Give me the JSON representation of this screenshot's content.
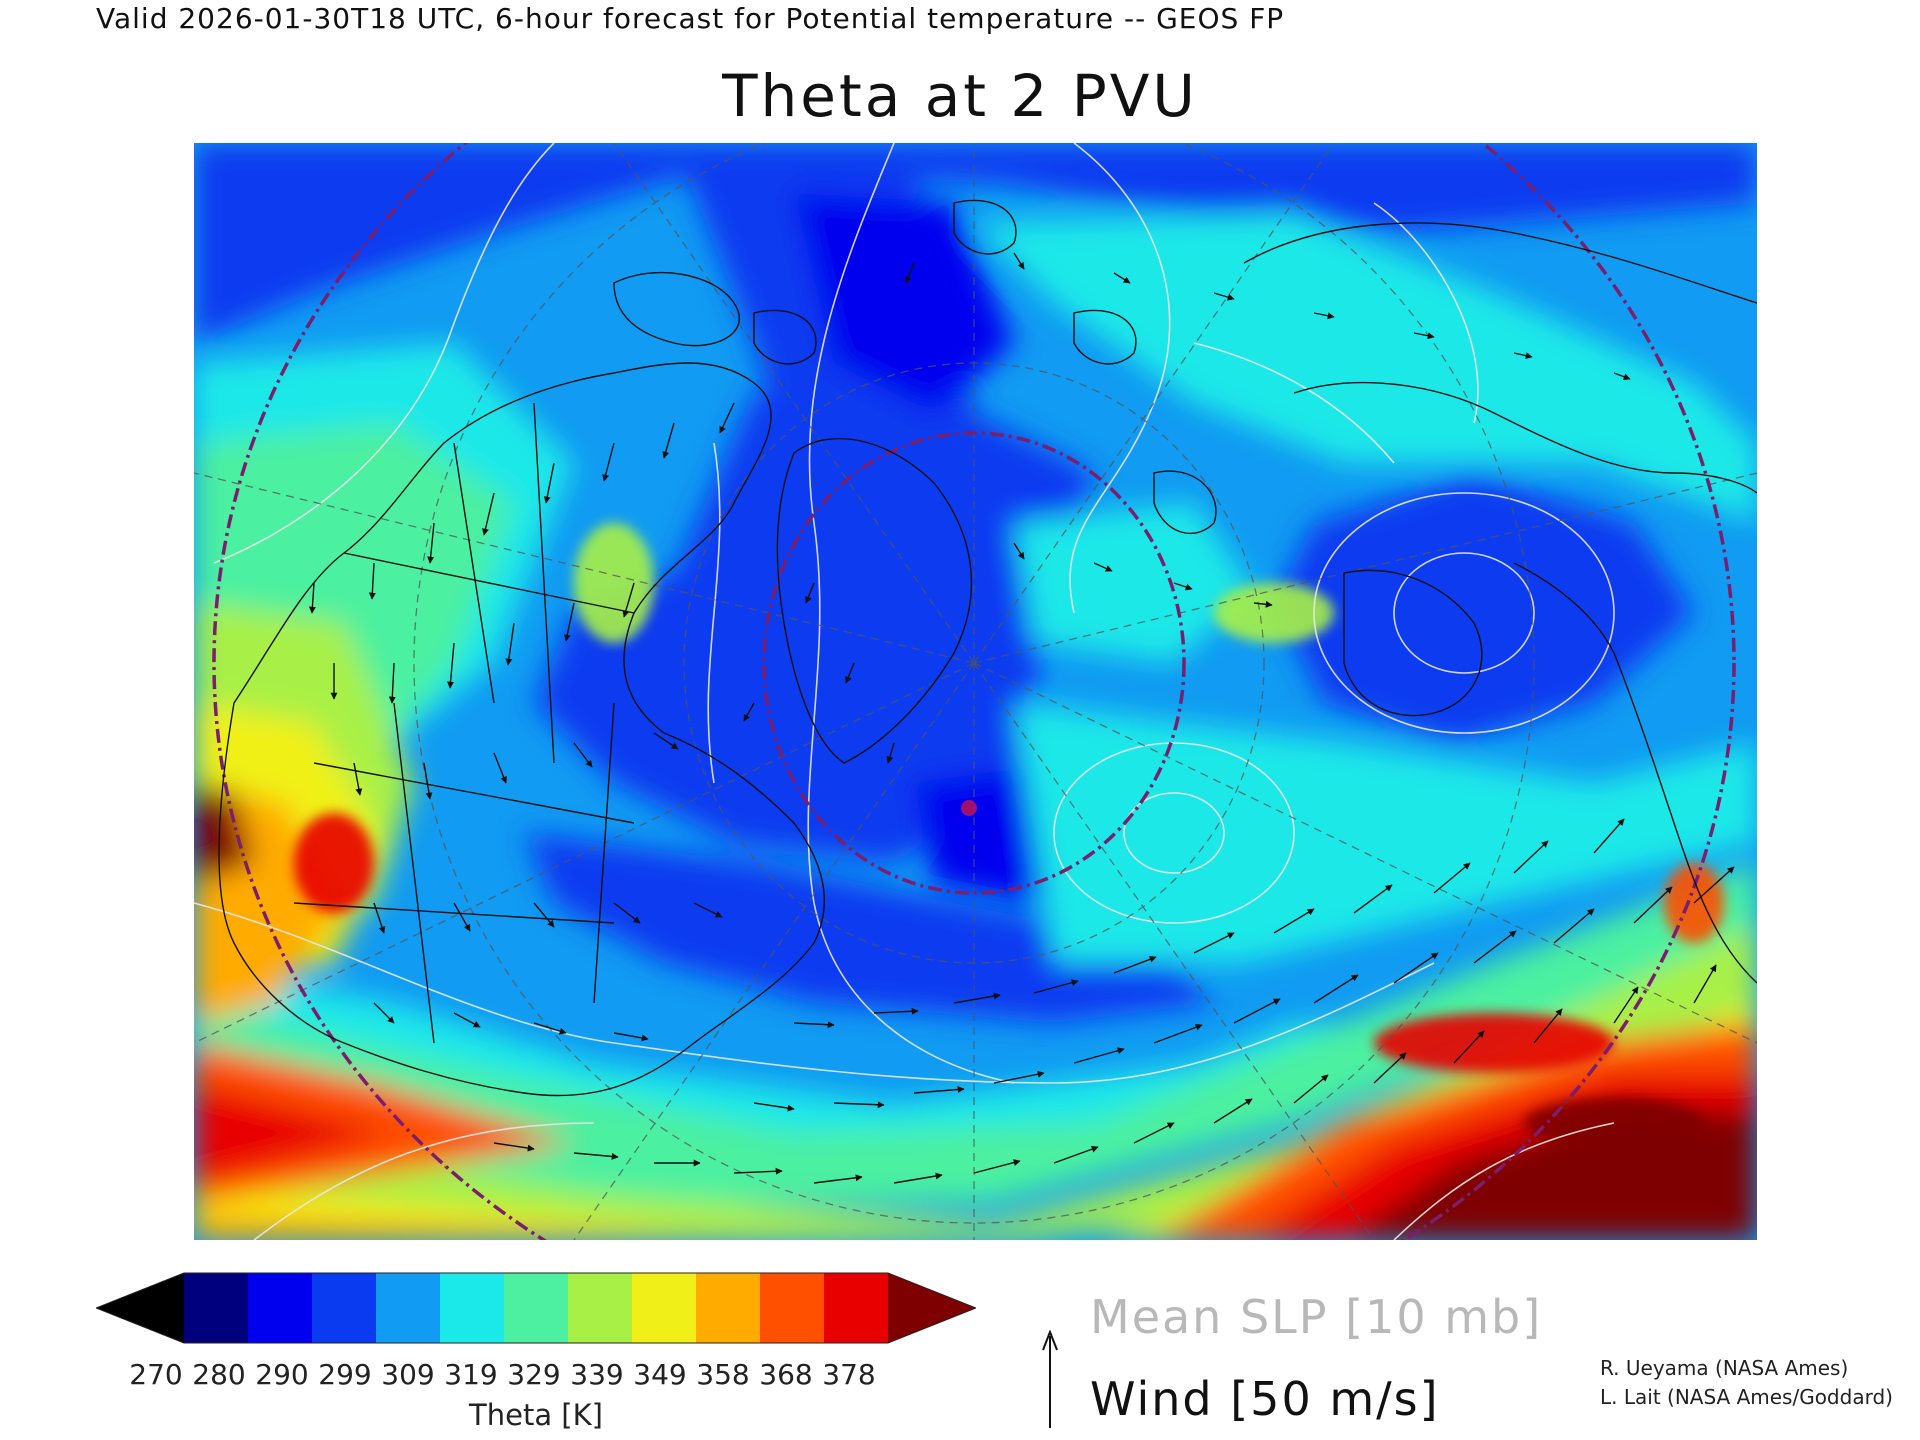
{
  "header": {
    "valid_line": "Valid 2026-01-30T18 UTC, 6-hour forecast for Potential temperature -- GEOS FP",
    "title": "Theta at 2 PVU"
  },
  "colorbar": {
    "ticks": [
      "270",
      "280",
      "290",
      "299",
      "309",
      "319",
      "329",
      "339",
      "349",
      "358",
      "368",
      "378"
    ],
    "colors": [
      "#000000",
      "#00007f",
      "#0000ef",
      "#0b3bf0",
      "#119bf2",
      "#1be8e8",
      "#4cf0a0",
      "#a8f046",
      "#f0f018",
      "#ffab00",
      "#ff5000",
      "#e80000",
      "#7f0000"
    ],
    "label": "Theta [K]"
  },
  "legend": {
    "slp": "Mean SLP [10 mb]",
    "wind": "Wind [50 m/s]"
  },
  "credits": [
    "R. Ueyama (NASA Ames)",
    "L. Lait (NASA Ames/Goddard)"
  ],
  "map": {
    "contour_color": "#e8e8e8",
    "boundary_color": "#111111",
    "ring_color": "#7a1e6e"
  }
}
